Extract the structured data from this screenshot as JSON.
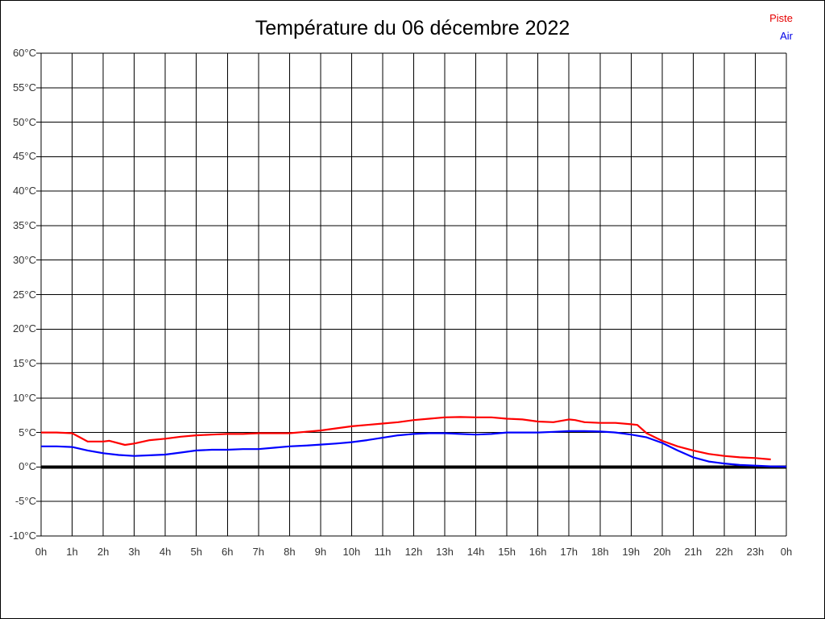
{
  "chart_data": {
    "type": "line",
    "title": "Température du 06 décembre 2022",
    "legend_position": "top-right",
    "legend": [
      {
        "label": "Piste",
        "color": "#e60000"
      },
      {
        "label": "Air",
        "color": "#0000e6"
      }
    ],
    "xlabel": "",
    "ylabel": "",
    "xlim": [
      0,
      24
    ],
    "ylim": [
      -10,
      60
    ],
    "grid": true,
    "x_tick_labels": [
      "0h",
      "1h",
      "2h",
      "3h",
      "4h",
      "5h",
      "6h",
      "7h",
      "8h",
      "9h",
      "10h",
      "11h",
      "12h",
      "13h",
      "14h",
      "15h",
      "16h",
      "17h",
      "18h",
      "19h",
      "20h",
      "21h",
      "22h",
      "23h",
      "0h"
    ],
    "y_tick_labels": [
      "60°C",
      "55°C",
      "50°C",
      "45°C",
      "40°C",
      "35°C",
      "30°C",
      "25°C",
      "20°C",
      "15°C",
      "10°C",
      "5°C",
      "0°C",
      "-5°C",
      "-10°C"
    ],
    "y_tick_values": [
      60,
      55,
      50,
      45,
      40,
      35,
      30,
      25,
      20,
      15,
      10,
      5,
      0,
      -5,
      -10
    ],
    "zero_line": {
      "value": 0,
      "color": "#000000",
      "width": 4
    },
    "series": [
      {
        "name": "Piste",
        "color": "#ff0000",
        "width": 2.2,
        "points": [
          [
            0,
            5.0
          ],
          [
            0.5,
            5.0
          ],
          [
            1,
            4.9
          ],
          [
            1.25,
            4.3
          ],
          [
            1.5,
            3.7
          ],
          [
            2,
            3.7
          ],
          [
            2.2,
            3.8
          ],
          [
            2.7,
            3.2
          ],
          [
            3,
            3.4
          ],
          [
            3.5,
            3.9
          ],
          [
            4,
            4.1
          ],
          [
            4.5,
            4.4
          ],
          [
            5,
            4.6
          ],
          [
            5.5,
            4.7
          ],
          [
            6,
            4.8
          ],
          [
            6.5,
            4.8
          ],
          [
            7,
            4.9
          ],
          [
            7.5,
            4.9
          ],
          [
            8,
            4.9
          ],
          [
            8.5,
            5.1
          ],
          [
            9,
            5.3
          ],
          [
            9.5,
            5.6
          ],
          [
            10,
            5.9
          ],
          [
            10.5,
            6.1
          ],
          [
            11,
            6.3
          ],
          [
            11.5,
            6.5
          ],
          [
            12,
            6.8
          ],
          [
            12.5,
            7.0
          ],
          [
            13,
            7.2
          ],
          [
            13.5,
            7.25
          ],
          [
            14,
            7.2
          ],
          [
            14.5,
            7.2
          ],
          [
            15,
            7.0
          ],
          [
            15.5,
            6.9
          ],
          [
            16,
            6.6
          ],
          [
            16.5,
            6.5
          ],
          [
            17,
            6.9
          ],
          [
            17.2,
            6.8
          ],
          [
            17.5,
            6.5
          ],
          [
            18,
            6.4
          ],
          [
            18.5,
            6.4
          ],
          [
            19,
            6.2
          ],
          [
            19.2,
            6.1
          ],
          [
            19.5,
            4.9
          ],
          [
            20,
            3.8
          ],
          [
            20.5,
            3.0
          ],
          [
            21,
            2.4
          ],
          [
            21.5,
            1.9
          ],
          [
            22,
            1.6
          ],
          [
            22.5,
            1.4
          ],
          [
            23,
            1.3
          ],
          [
            23.5,
            1.1
          ]
        ]
      },
      {
        "name": "Air",
        "color": "#0000ff",
        "width": 2.2,
        "points": [
          [
            0,
            3.0
          ],
          [
            0.5,
            3.0
          ],
          [
            1,
            2.9
          ],
          [
            1.5,
            2.4
          ],
          [
            2,
            2.0
          ],
          [
            2.5,
            1.75
          ],
          [
            3,
            1.6
          ],
          [
            3.5,
            1.7
          ],
          [
            4,
            1.8
          ],
          [
            4.5,
            2.1
          ],
          [
            5,
            2.4
          ],
          [
            5.5,
            2.5
          ],
          [
            6,
            2.5
          ],
          [
            6.5,
            2.6
          ],
          [
            7,
            2.6
          ],
          [
            7.5,
            2.8
          ],
          [
            8,
            3.0
          ],
          [
            8.5,
            3.1
          ],
          [
            9,
            3.25
          ],
          [
            9.5,
            3.4
          ],
          [
            10,
            3.6
          ],
          [
            10.5,
            3.9
          ],
          [
            11,
            4.25
          ],
          [
            11.5,
            4.6
          ],
          [
            12,
            4.8
          ],
          [
            12.5,
            4.9
          ],
          [
            13,
            4.9
          ],
          [
            13.5,
            4.8
          ],
          [
            14,
            4.7
          ],
          [
            14.5,
            4.8
          ],
          [
            15,
            5.0
          ],
          [
            15.5,
            5.0
          ],
          [
            16,
            5.0
          ],
          [
            16.5,
            5.1
          ],
          [
            17,
            5.2
          ],
          [
            17.5,
            5.2
          ],
          [
            18,
            5.15
          ],
          [
            18.5,
            5.0
          ],
          [
            19,
            4.7
          ],
          [
            19.5,
            4.3
          ],
          [
            20,
            3.5
          ],
          [
            20.5,
            2.4
          ],
          [
            21,
            1.4
          ],
          [
            21.5,
            0.8
          ],
          [
            22,
            0.5
          ],
          [
            22.5,
            0.3
          ],
          [
            23,
            0.2
          ],
          [
            23.5,
            0.1
          ],
          [
            24,
            0.05
          ]
        ]
      }
    ]
  }
}
